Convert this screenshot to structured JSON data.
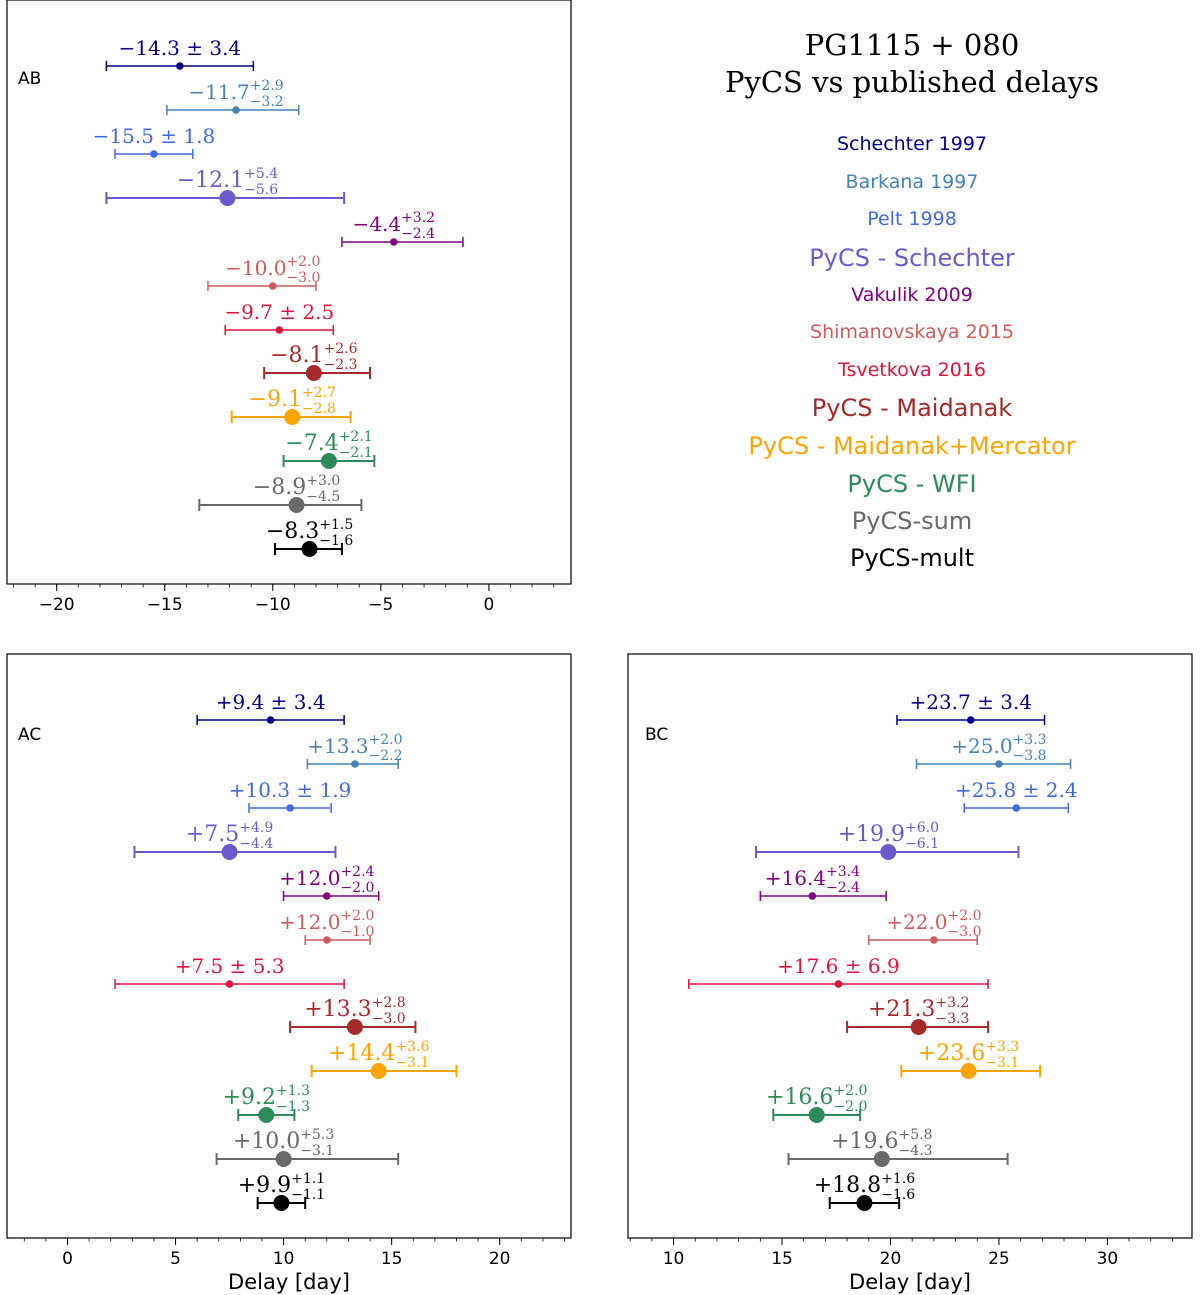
{
  "title": {
    "line1": "PG1115 + 080",
    "line2": "PyCS vs published delays"
  },
  "legend": {
    "entries": [
      {
        "label": "Schechter 1997",
        "color": "#00008B",
        "style": "small"
      },
      {
        "label": "Barkana 1997",
        "color": "#4682B4",
        "style": "small"
      },
      {
        "label": "Pelt 1998",
        "color": "#4169E1",
        "style": "small"
      },
      {
        "label": "PyCS - Schechter",
        "color": "#6A5ACD",
        "style": "large"
      },
      {
        "label": "Vakulik 2009",
        "color": "#800080",
        "style": "small"
      },
      {
        "label": "Shimanovskaya 2015",
        "color": "#CD5C5C",
        "style": "small"
      },
      {
        "label": "Tsvetkova 2016",
        "color": "#DC143C",
        "style": "small"
      },
      {
        "label": "PyCS - Maidanak",
        "color": "#A52A2A",
        "style": "large"
      },
      {
        "label": "PyCS - Maidanak+Mercator",
        "color": "#FFA500",
        "style": "large"
      },
      {
        "label": "PyCS - WFI",
        "color": "#2E8B57",
        "style": "large"
      },
      {
        "label": "PyCS-sum",
        "color": "#696969",
        "style": "large"
      },
      {
        "label": "PyCS-mult",
        "color": "#000000",
        "style": "large"
      }
    ]
  },
  "chart_data": [
    {
      "type": "scatter",
      "panel": "AB",
      "xlabel": "",
      "xlim": [
        -22.3,
        3.8
      ],
      "xticks": [
        -20,
        -15,
        -10,
        -5,
        0
      ],
      "xtick_labels": [
        "−20",
        "−15",
        "−10",
        "−5",
        "0"
      ],
      "points": [
        {
          "series": "Schechter 1997",
          "value": -14.3,
          "err_minus": 3.4,
          "err_plus": 3.4,
          "main": "−14.3",
          "sup": "",
          "sub": "",
          "pm": "3.4"
        },
        {
          "series": "Barkana 1997",
          "value": -11.7,
          "err_minus": 3.2,
          "err_plus": 2.9,
          "main": "−11.7",
          "sup": "+2.9",
          "sub": "−3.2",
          "pm": ""
        },
        {
          "series": "Pelt 1998",
          "value": -15.5,
          "err_minus": 1.8,
          "err_plus": 1.8,
          "main": "−15.5",
          "sup": "",
          "sub": "",
          "pm": "1.8"
        },
        {
          "series": "PyCS - Schechter",
          "value": -12.1,
          "err_minus": 5.6,
          "err_plus": 5.4,
          "main": "−12.1",
          "sup": "+5.4",
          "sub": "−5.6",
          "pm": ""
        },
        {
          "series": "Vakulik 2009",
          "value": -4.4,
          "err_minus": 2.4,
          "err_plus": 3.2,
          "main": "−4.4",
          "sup": "+3.2",
          "sub": "−2.4",
          "pm": ""
        },
        {
          "series": "Shimanovskaya 2015",
          "value": -10.0,
          "err_minus": 3.0,
          "err_plus": 2.0,
          "main": "−10.0",
          "sup": "+2.0",
          "sub": "−3.0",
          "pm": ""
        },
        {
          "series": "Tsvetkova 2016",
          "value": -9.7,
          "err_minus": 2.5,
          "err_plus": 2.5,
          "main": "−9.7",
          "sup": "",
          "sub": "",
          "pm": "2.5"
        },
        {
          "series": "PyCS - Maidanak",
          "value": -8.1,
          "err_minus": 2.3,
          "err_plus": 2.6,
          "main": "−8.1",
          "sup": "+2.6",
          "sub": "−2.3",
          "pm": ""
        },
        {
          "series": "PyCS - Maidanak+Mercator",
          "value": -9.1,
          "err_minus": 2.8,
          "err_plus": 2.7,
          "main": "−9.1",
          "sup": "+2.7",
          "sub": "−2.8",
          "pm": ""
        },
        {
          "series": "PyCS - WFI",
          "value": -7.4,
          "err_minus": 2.1,
          "err_plus": 2.1,
          "main": "−7.4",
          "sup": "+2.1",
          "sub": "−2.1",
          "pm": ""
        },
        {
          "series": "PyCS-sum",
          "value": -8.9,
          "err_minus": 4.5,
          "err_plus": 3.0,
          "main": "−8.9",
          "sup": "+3.0",
          "sub": "−4.5",
          "pm": ""
        },
        {
          "series": "PyCS-mult",
          "value": -8.3,
          "err_minus": 1.6,
          "err_plus": 1.5,
          "main": "−8.3",
          "sup": "+1.5",
          "sub": "−1.6",
          "pm": ""
        }
      ]
    },
    {
      "type": "scatter",
      "panel": "AC",
      "xlabel": "Delay [day]",
      "xlim": [
        -2.8,
        23.3
      ],
      "xticks": [
        0,
        5,
        10,
        15,
        20
      ],
      "xtick_labels": [
        "0",
        "5",
        "10",
        "15",
        "20"
      ],
      "points": [
        {
          "series": "Schechter 1997",
          "value": 9.4,
          "err_minus": 3.4,
          "err_plus": 3.4,
          "main": "+9.4",
          "sup": "",
          "sub": "",
          "pm": "3.4"
        },
        {
          "series": "Barkana 1997",
          "value": 13.3,
          "err_minus": 2.2,
          "err_plus": 2.0,
          "main": "+13.3",
          "sup": "+2.0",
          "sub": "−2.2",
          "pm": ""
        },
        {
          "series": "Pelt 1998",
          "value": 10.3,
          "err_minus": 1.9,
          "err_plus": 1.9,
          "main": "+10.3",
          "sup": "",
          "sub": "",
          "pm": "1.9"
        },
        {
          "series": "PyCS - Schechter",
          "value": 7.5,
          "err_minus": 4.4,
          "err_plus": 4.9,
          "main": "+7.5",
          "sup": "+4.9",
          "sub": "−4.4",
          "pm": ""
        },
        {
          "series": "Vakulik 2009",
          "value": 12.0,
          "err_minus": 2.0,
          "err_plus": 2.4,
          "main": "+12.0",
          "sup": "+2.4",
          "sub": "−2.0",
          "pm": ""
        },
        {
          "series": "Shimanovskaya 2015",
          "value": 12.0,
          "err_minus": 1.0,
          "err_plus": 2.0,
          "main": "+12.0",
          "sup": "+2.0",
          "sub": "−1.0",
          "pm": ""
        },
        {
          "series": "Tsvetkova 2016",
          "value": 7.5,
          "err_minus": 5.3,
          "err_plus": 5.3,
          "main": "+7.5",
          "sup": "",
          "sub": "",
          "pm": "5.3"
        },
        {
          "series": "PyCS - Maidanak",
          "value": 13.3,
          "err_minus": 3.0,
          "err_plus": 2.8,
          "main": "+13.3",
          "sup": "+2.8",
          "sub": "−3.0",
          "pm": ""
        },
        {
          "series": "PyCS - Maidanak+Mercator",
          "value": 14.4,
          "err_minus": 3.1,
          "err_plus": 3.6,
          "main": "+14.4",
          "sup": "+3.6",
          "sub": "−3.1",
          "pm": ""
        },
        {
          "series": "PyCS - WFI",
          "value": 9.2,
          "err_minus": 1.3,
          "err_plus": 1.3,
          "main": "+9.2",
          "sup": "+1.3",
          "sub": "−1.3",
          "pm": ""
        },
        {
          "series": "PyCS-sum",
          "value": 10.0,
          "err_minus": 3.1,
          "err_plus": 5.3,
          "main": "+10.0",
          "sup": "+5.3",
          "sub": "−3.1",
          "pm": ""
        },
        {
          "series": "PyCS-mult",
          "value": 9.9,
          "err_minus": 1.1,
          "err_plus": 1.1,
          "main": "+9.9",
          "sup": "+1.1",
          "sub": "−1.1",
          "pm": ""
        }
      ]
    },
    {
      "type": "scatter",
      "panel": "BC",
      "xlabel": "Delay [day]",
      "xlim": [
        7.9,
        33.9
      ],
      "xticks": [
        10,
        15,
        20,
        25,
        30
      ],
      "xtick_labels": [
        "10",
        "15",
        "20",
        "25",
        "30"
      ],
      "points": [
        {
          "series": "Schechter 1997",
          "value": 23.7,
          "err_minus": 3.4,
          "err_plus": 3.4,
          "main": "+23.7",
          "sup": "",
          "sub": "",
          "pm": "3.4"
        },
        {
          "series": "Barkana 1997",
          "value": 25.0,
          "err_minus": 3.8,
          "err_plus": 3.3,
          "main": "+25.0",
          "sup": "+3.3",
          "sub": "−3.8",
          "pm": ""
        },
        {
          "series": "Pelt 1998",
          "value": 25.8,
          "err_minus": 2.4,
          "err_plus": 2.4,
          "main": "+25.8",
          "sup": "",
          "sub": "",
          "pm": "2.4"
        },
        {
          "series": "PyCS - Schechter",
          "value": 19.9,
          "err_minus": 6.1,
          "err_plus": 6.0,
          "main": "+19.9",
          "sup": "+6.0",
          "sub": "−6.1",
          "pm": ""
        },
        {
          "series": "Vakulik 2009",
          "value": 16.4,
          "err_minus": 2.4,
          "err_plus": 3.4,
          "main": "+16.4",
          "sup": "+3.4",
          "sub": "−2.4",
          "pm": ""
        },
        {
          "series": "Shimanovskaya 2015",
          "value": 22.0,
          "err_minus": 3.0,
          "err_plus": 2.0,
          "main": "+22.0",
          "sup": "+2.0",
          "sub": "−3.0",
          "pm": ""
        },
        {
          "series": "Tsvetkova 2016",
          "value": 17.6,
          "err_minus": 6.9,
          "err_plus": 6.9,
          "main": "+17.6",
          "sup": "",
          "sub": "",
          "pm": "6.9"
        },
        {
          "series": "PyCS - Maidanak",
          "value": 21.3,
          "err_minus": 3.3,
          "err_plus": 3.2,
          "main": "+21.3",
          "sup": "+3.2",
          "sub": "−3.3",
          "pm": ""
        },
        {
          "series": "PyCS - Maidanak+Mercator",
          "value": 23.6,
          "err_minus": 3.1,
          "err_plus": 3.3,
          "main": "+23.6",
          "sup": "+3.3",
          "sub": "−3.1",
          "pm": ""
        },
        {
          "series": "PyCS - WFI",
          "value": 16.6,
          "err_minus": 2.0,
          "err_plus": 2.0,
          "main": "+16.6",
          "sup": "+2.0",
          "sub": "−2.0",
          "pm": ""
        },
        {
          "series": "PyCS-sum",
          "value": 19.6,
          "err_minus": 4.3,
          "err_plus": 5.8,
          "main": "+19.6",
          "sup": "+5.8",
          "sub": "−4.3",
          "pm": ""
        },
        {
          "series": "PyCS-mult",
          "value": 18.8,
          "err_minus": 1.6,
          "err_plus": 1.6,
          "main": "+18.8",
          "sup": "+1.6",
          "sub": "−1.6",
          "pm": ""
        }
      ]
    }
  ]
}
